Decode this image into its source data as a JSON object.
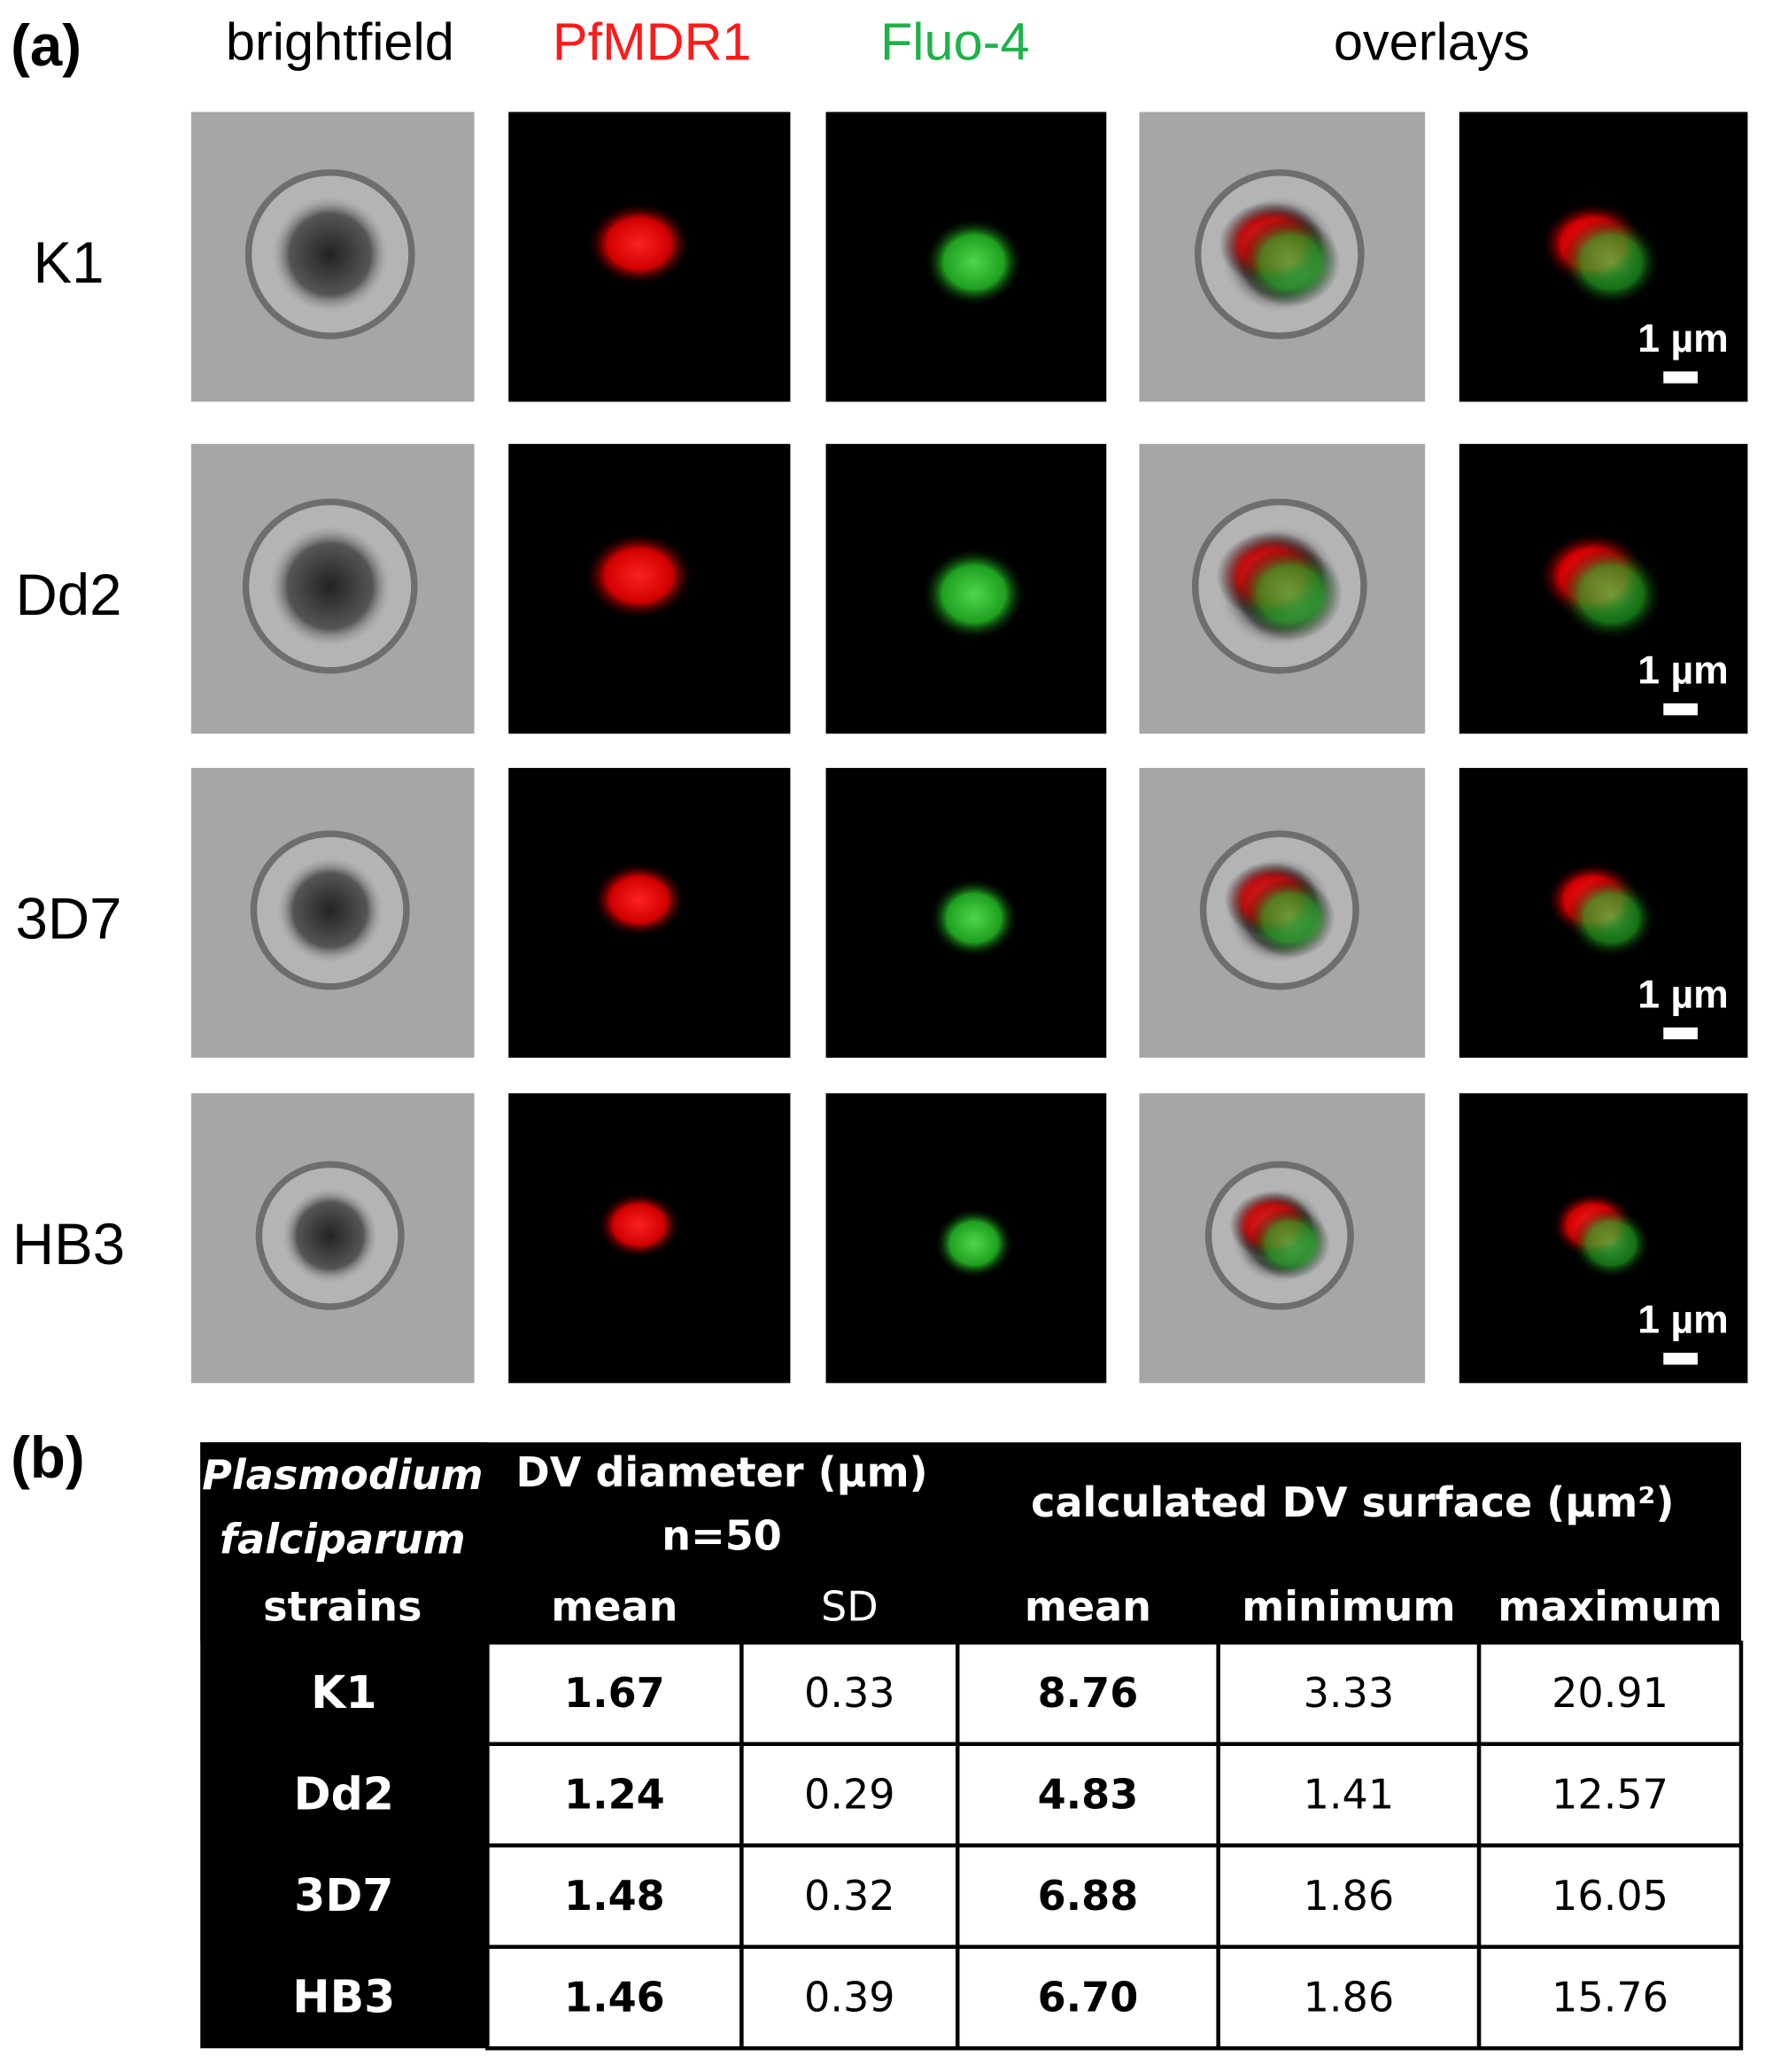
{
  "panel_a": {
    "label": "(a)",
    "column_headers": [
      "brightfield",
      "PfMDR1",
      "Fluo-4",
      "overlays"
    ],
    "rows": [
      "K1",
      "Dd2",
      "3D7",
      "HB3"
    ],
    "scale_bars": [
      "1 µm",
      "1 µm",
      "1 µm",
      "1 µm"
    ]
  },
  "panel_b": {
    "label": "(b)",
    "table": {
      "strain_header": [
        "Plasmodium",
        "falciparum",
        "strains"
      ],
      "diameter_header": [
        "DV diameter (µm)",
        "n=50"
      ],
      "surface_header": "calculated DV surface (µm²)",
      "subheaders": [
        "mean",
        "SD",
        "mean",
        "minimum",
        "maximum"
      ],
      "rows": [
        [
          "K1",
          "1.67",
          "0.33",
          "8.76",
          "3.33",
          "20.91"
        ],
        [
          "Dd2",
          "1.24",
          "0.29",
          "4.83",
          "1.41",
          "12.57"
        ],
        [
          "3D7",
          "1.48",
          "0.32",
          "6.88",
          "1.86",
          "16.05"
        ],
        [
          "HB3",
          "1.46",
          "0.39",
          "6.70",
          "1.86",
          "15.76"
        ]
      ]
    }
  }
}
